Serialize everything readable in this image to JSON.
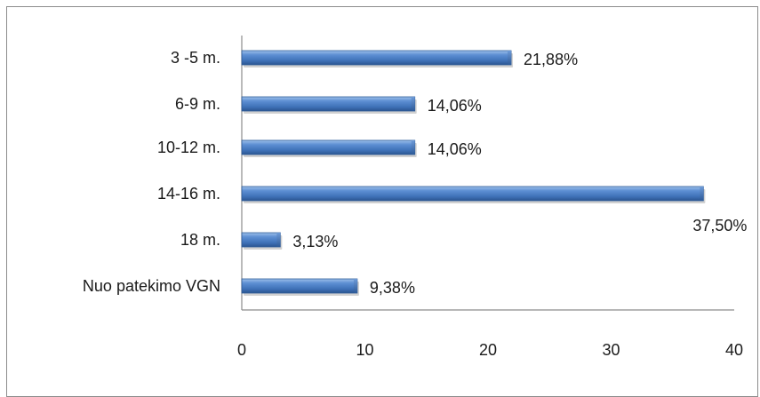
{
  "chart_data": {
    "type": "bar",
    "orientation": "horizontal",
    "categories": [
      "3 -5 m.",
      "6-9 m.",
      "10-12 m.",
      "14-16 m.",
      "18 m.",
      "Nuo patekimo VGN"
    ],
    "values": [
      21.88,
      14.06,
      14.06,
      37.5,
      3.13,
      9.38
    ],
    "value_labels": [
      "21,88%",
      "14,06%",
      "14,06%",
      "37,50%",
      "3,13%",
      "9,38%"
    ],
    "xlim": [
      0,
      40
    ],
    "x_ticks": [
      0,
      10,
      20,
      30,
      40
    ],
    "x_tick_labels": [
      "0",
      "10",
      "20",
      "30",
      "40"
    ],
    "title": "",
    "xlabel": "",
    "ylabel": "",
    "grid": false,
    "legend": "none",
    "bar_color": "#4f81bd"
  }
}
